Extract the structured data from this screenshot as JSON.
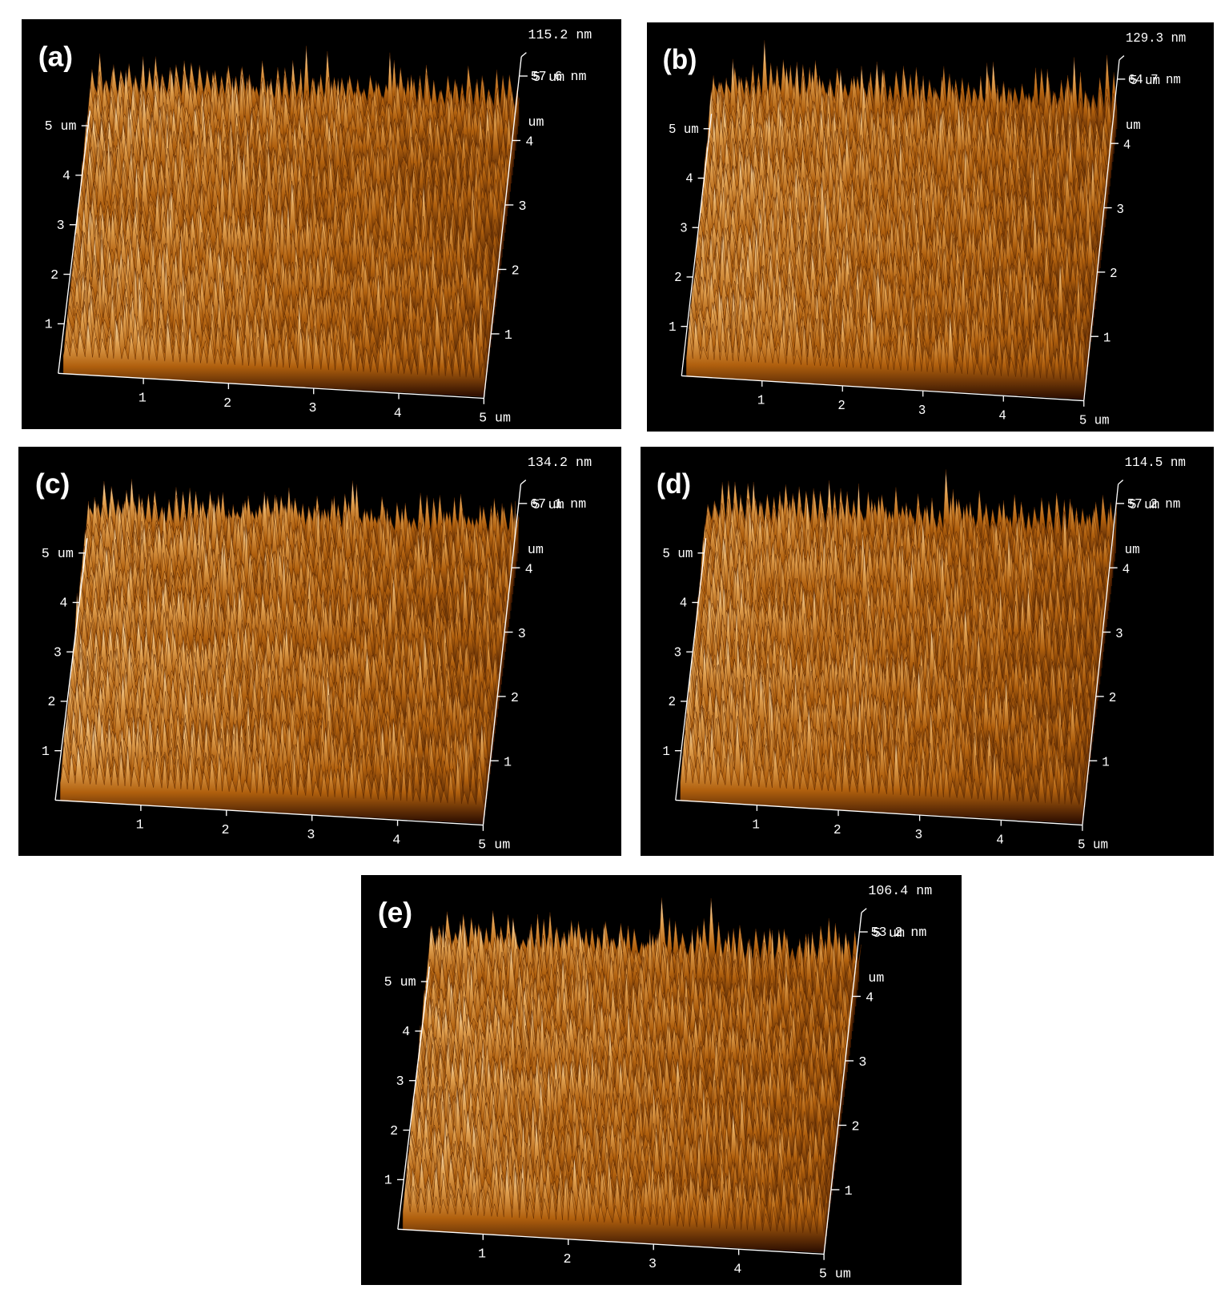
{
  "panels": [
    {
      "label": "(a)",
      "z_max": "115.2 nm",
      "z_mid": "57.6 nm",
      "z_unit": "um",
      "x_ticks": [
        "1",
        "2",
        "3",
        "4",
        "5 um"
      ],
      "y_ticks": [
        "1",
        "2",
        "3",
        "4",
        "5 um"
      ],
      "right_ticks": [
        "1",
        "2",
        "3",
        "4",
        "5 um"
      ]
    },
    {
      "label": "(b)",
      "z_max": "129.3 nm",
      "z_mid": "64.7 nm",
      "z_unit": "um",
      "x_ticks": [
        "1",
        "2",
        "3",
        "4",
        "5 um"
      ],
      "y_ticks": [
        "1",
        "2",
        "3",
        "4",
        "5 um"
      ],
      "right_ticks": [
        "1",
        "2",
        "3",
        "4",
        "5 um"
      ]
    },
    {
      "label": "(c)",
      "z_max": "134.2 nm",
      "z_mid": "67.1 nm",
      "z_unit": "um",
      "x_ticks": [
        "1",
        "2",
        "3",
        "4",
        "5 um"
      ],
      "y_ticks": [
        "1",
        "2",
        "3",
        "4",
        "5 um"
      ],
      "right_ticks": [
        "1",
        "2",
        "3",
        "4",
        "5 um"
      ]
    },
    {
      "label": "(d)",
      "z_max": "114.5 nm",
      "z_mid": "57.2 nm",
      "z_unit": "um",
      "x_ticks": [
        "1",
        "2",
        "3",
        "4",
        "5 um"
      ],
      "y_ticks": [
        "1",
        "2",
        "3",
        "4",
        "5 um"
      ],
      "right_ticks": [
        "1",
        "2",
        "3",
        "4",
        "5 um"
      ]
    },
    {
      "label": "(e)",
      "z_max": "106.4 nm",
      "z_mid": "53.2 nm",
      "z_unit": "um",
      "x_ticks": [
        "1",
        "2",
        "3",
        "4",
        "5 um"
      ],
      "y_ticks": [
        "1",
        "2",
        "3",
        "4",
        "5 um"
      ],
      "right_ticks": [
        "1",
        "2",
        "3",
        "4",
        "5 um"
      ]
    }
  ]
}
